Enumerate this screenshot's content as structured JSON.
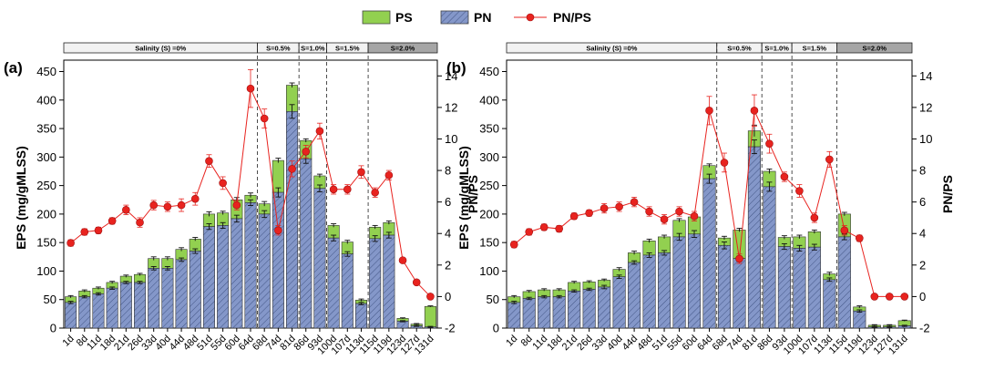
{
  "legend": {
    "ps": "PS",
    "pn": "PN",
    "ratio": "PN/PS"
  },
  "colors": {
    "ps": "#92d050",
    "pn": "#8497c9",
    "ratio": "#e8231f",
    "header_light": "#f2f2f2",
    "header_dark": "#a6a6a6"
  },
  "chart_data": [
    {
      "type": "bar",
      "panel_label": "(a)",
      "ylabel": "EPS (mg/gMLSS)",
      "y2label": "PN/PS",
      "ylim": [
        0,
        470
      ],
      "y2lim": [
        -2,
        15
      ],
      "yticks": [
        0,
        50,
        100,
        150,
        200,
        250,
        300,
        350,
        400,
        450
      ],
      "y2ticks": [
        -2,
        0,
        2,
        4,
        6,
        8,
        10,
        12,
        14
      ],
      "categories": [
        "1d",
        "8d",
        "11d",
        "18d",
        "21d",
        "26d",
        "33d",
        "40d",
        "44d",
        "48d",
        "51d",
        "55d",
        "60d",
        "64d",
        "68d",
        "74d",
        "81d",
        "86d",
        "93d",
        "100d",
        "107d",
        "113d",
        "115d",
        "119d",
        "123d",
        "127d",
        "131d"
      ],
      "series": [
        {
          "name": "PN",
          "values": [
            45,
            55,
            60,
            70,
            80,
            80,
            105,
            105,
            120,
            135,
            178,
            180,
            192,
            220,
            200,
            238,
            380,
            297,
            245,
            158,
            130,
            43,
            157,
            163,
            12,
            4,
            2
          ]
        },
        {
          "name": "PS",
          "values": [
            10,
            10,
            10,
            10,
            11,
            14,
            17,
            17,
            18,
            21,
            22,
            22,
            33,
            13,
            18,
            56,
            46,
            32,
            22,
            22,
            21,
            6,
            20,
            22,
            5,
            3,
            36
          ]
        },
        {
          "name": "PN/PS",
          "axis": "secondary",
          "values": [
            3.4,
            4.1,
            4.2,
            4.8,
            5.5,
            4.7,
            5.8,
            5.7,
            5.8,
            6.2,
            8.6,
            7.2,
            5.8,
            13.2,
            11.3,
            4.2,
            8.1,
            9.2,
            10.5,
            6.8,
            6.8,
            7.9,
            6.6,
            7.7,
            2.3,
            0.9,
            0.0
          ]
        }
      ],
      "pn_err": [
        2,
        2,
        2,
        2,
        2,
        2,
        3,
        3,
        3,
        4,
        5,
        5,
        6,
        5,
        6,
        8,
        12,
        8,
        6,
        5,
        4,
        2,
        5,
        5,
        1,
        1,
        1
      ],
      "total_err": [
        2,
        2,
        2,
        2,
        2,
        2,
        3,
        3,
        3,
        3,
        4,
        3,
        4,
        4,
        4,
        4,
        4,
        3,
        3,
        3,
        3,
        2,
        3,
        3,
        1,
        1,
        1
      ],
      "ratio_err": [
        0.2,
        0.2,
        0.2,
        0.2,
        0.3,
        0.3,
        0.3,
        0.3,
        0.4,
        0.4,
        0.4,
        0.4,
        0.3,
        1.2,
        0.6,
        0.3,
        0.5,
        0.4,
        0.5,
        0.3,
        0.3,
        0.4,
        0.3,
        0.3,
        0.1,
        0.1,
        0.1
      ],
      "salinity": [
        {
          "label": "Salinity (S) =0%",
          "from": "1d",
          "to": "64d",
          "shade": "light"
        },
        {
          "label": "S=0.5%",
          "from": "68d",
          "to": "81d",
          "shade": "light"
        },
        {
          "label": "S=1.0%",
          "from": "86d",
          "to": "93d",
          "shade": "light"
        },
        {
          "label": "S=1.5%",
          "from": "100d",
          "to": "113d",
          "shade": "light"
        },
        {
          "label": "S=2.0%",
          "from": "115d",
          "to": "131d",
          "shade": "dark"
        }
      ]
    },
    {
      "type": "bar",
      "panel_label": "(b)",
      "ylabel": "EPS (mg/gMLSS)",
      "y2label": "PN/PS",
      "ylim": [
        0,
        470
      ],
      "y2lim": [
        -2,
        15
      ],
      "yticks": [
        0,
        50,
        100,
        150,
        200,
        250,
        300,
        350,
        400,
        450
      ],
      "y2ticks": [
        -2,
        0,
        2,
        4,
        6,
        8,
        10,
        12,
        14
      ],
      "categories": [
        "1d",
        "8d",
        "11d",
        "18d",
        "21d",
        "26d",
        "33d",
        "40d",
        "44d",
        "48d",
        "51d",
        "55d",
        "60d",
        "64d",
        "68d",
        "74d",
        "81d",
        "86d",
        "93d",
        "100d",
        "107d",
        "113d",
        "115d",
        "119d",
        "123d",
        "127d",
        "131d"
      ],
      "series": [
        {
          "name": "PN",
          "values": [
            45,
            52,
            55,
            55,
            65,
            68,
            72,
            90,
            115,
            128,
            132,
            160,
            165,
            262,
            145,
            122,
            318,
            248,
            143,
            140,
            142,
            85,
            160,
            30,
            2,
            2,
            4
          ]
        },
        {
          "name": "PS",
          "values": [
            10,
            12,
            12,
            12,
            15,
            13,
            12,
            13,
            17,
            25,
            28,
            29,
            30,
            23,
            13,
            50,
            28,
            27,
            16,
            20,
            27,
            10,
            40,
            7,
            3,
            3,
            9
          ]
        },
        {
          "name": "PN/PS",
          "axis": "secondary",
          "values": [
            3.3,
            4.1,
            4.4,
            4.3,
            5.1,
            5.3,
            5.6,
            5.7,
            6.0,
            5.4,
            4.9,
            5.4,
            5.1,
            11.8,
            8.5,
            2.4,
            11.8,
            9.7,
            7.6,
            6.7,
            5.0,
            8.7,
            4.2,
            3.7,
            0.0,
            0.0,
            0.0
          ]
        }
      ],
      "pn_err": [
        2,
        2,
        2,
        2,
        2,
        2,
        3,
        3,
        3,
        4,
        4,
        6,
        6,
        8,
        6,
        4,
        12,
        8,
        5,
        5,
        5,
        3,
        5,
        2,
        1,
        1,
        1
      ],
      "total_err": [
        2,
        2,
        2,
        2,
        2,
        2,
        2,
        3,
        3,
        3,
        3,
        3,
        3,
        3,
        3,
        3,
        10,
        4,
        3,
        3,
        3,
        3,
        3,
        2,
        1,
        1,
        1
      ],
      "ratio_err": [
        0.2,
        0.2,
        0.2,
        0.2,
        0.2,
        0.2,
        0.3,
        0.3,
        0.3,
        0.3,
        0.3,
        0.3,
        0.3,
        0.9,
        0.6,
        0.3,
        1.0,
        0.6,
        0.3,
        0.4,
        0.3,
        0.5,
        0.3,
        0.2,
        0.1,
        0.1,
        0.1
      ],
      "salinity": [
        {
          "label": "Salinity (S) =0%",
          "from": "1d",
          "to": "64d",
          "shade": "light"
        },
        {
          "label": "S=0.5%",
          "from": "68d",
          "to": "81d",
          "shade": "light"
        },
        {
          "label": "S=1.0%",
          "from": "86d",
          "to": "93d",
          "shade": "light"
        },
        {
          "label": "S=1.5%",
          "from": "100d",
          "to": "113d",
          "shade": "light"
        },
        {
          "label": "S=2.0%",
          "from": "115d",
          "to": "131d",
          "shade": "dark"
        }
      ]
    }
  ]
}
